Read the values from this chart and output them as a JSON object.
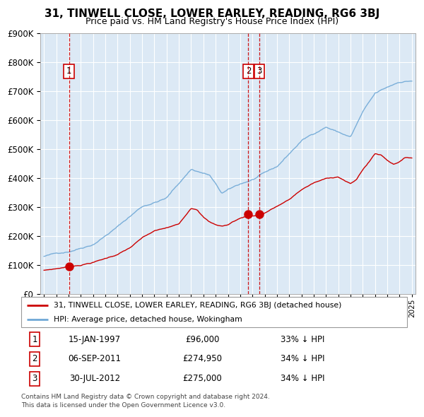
{
  "title": "31, TINWELL CLOSE, LOWER EARLEY, READING, RG6 3BJ",
  "subtitle": "Price paid vs. HM Land Registry's House Price Index (HPI)",
  "legend_red": "31, TINWELL CLOSE, LOWER EARLEY, READING, RG6 3BJ (detached house)",
  "legend_blue": "HPI: Average price, detached house, Wokingham",
  "footer": "Contains HM Land Registry data © Crown copyright and database right 2024.\nThis data is licensed under the Open Government Licence v3.0.",
  "transactions": [
    {
      "num": 1,
      "date": "15-JAN-1997",
      "price": "£96,000",
      "pct": "33% ↓ HPI",
      "year": 1997.04,
      "val": 96000
    },
    {
      "num": 2,
      "date": "06-SEP-2011",
      "price": "£274,950",
      "pct": "34% ↓ HPI",
      "year": 2011.67,
      "val": 274950
    },
    {
      "num": 3,
      "date": "30-JUL-2012",
      "price": "£275,000",
      "pct": "34% ↓ HPI",
      "year": 2012.58,
      "val": 275000
    }
  ],
  "ylim": [
    0,
    900000
  ],
  "xlim": [
    1994.7,
    2025.3
  ],
  "plot_bg": "#dce9f5",
  "grid_color": "#ffffff",
  "red_color": "#cc0000",
  "blue_color": "#6fa8d6",
  "title_fontsize": 11,
  "subtitle_fontsize": 9
}
